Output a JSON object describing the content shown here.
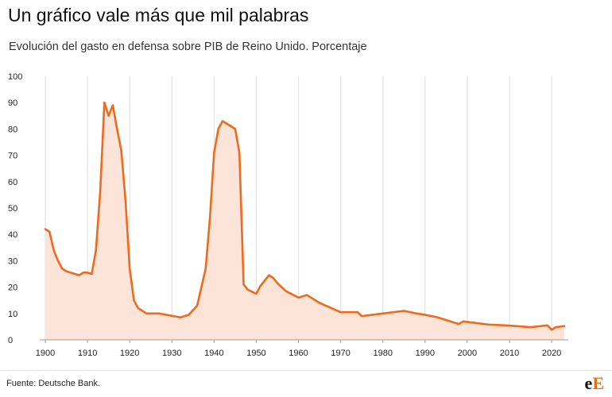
{
  "title": "Un gráfico vale más que mil palabras",
  "subtitle": "Evolución del gasto en defensa sobre PIB de Reino Unido. Porcentaje",
  "source": "Fuente: Deutsche Bank.",
  "logo": {
    "part1": "e",
    "part2": "E"
  },
  "colors": {
    "line": "#ee6b1d",
    "fill": "#fde4d9",
    "grid": "#e2e2e2",
    "axis": "#9a9a9a"
  },
  "chart_data": {
    "type": "area",
    "title": "",
    "xlabel": "",
    "ylabel": "",
    "xlim": [
      1900,
      2023
    ],
    "ylim": [
      0,
      100
    ],
    "x_ticks": [
      1900,
      1910,
      1920,
      1930,
      1940,
      1950,
      1960,
      1970,
      1980,
      1990,
      2000,
      2010,
      2020
    ],
    "y_ticks": [
      0,
      10,
      20,
      30,
      40,
      50,
      60,
      70,
      80,
      90,
      100
    ],
    "grid": "vertical",
    "legend": "none",
    "series": [
      {
        "x": [
          1900,
          1901,
          1902,
          1903,
          1904,
          1905,
          1908,
          1909,
          1910,
          1911,
          1912,
          1913,
          1914,
          1915,
          1916,
          1917,
          1918,
          1919,
          1920,
          1921,
          1922,
          1924,
          1927,
          1932,
          1934,
          1936,
          1937,
          1938,
          1939,
          1940,
          1941,
          1942,
          1943,
          1945,
          1946,
          1947,
          1948,
          1950,
          1951,
          1952,
          1953,
          1954,
          1955,
          1957,
          1960,
          1962,
          1965,
          1970,
          1974,
          1975,
          1980,
          1985,
          1988,
          1990,
          1993,
          1998,
          1999,
          2000,
          2005,
          2010,
          2015,
          2019,
          2020,
          2021,
          2023
        ],
        "y": [
          42,
          41,
          34,
          30,
          27,
          26,
          24.5,
          25.5,
          25.5,
          25,
          34,
          56,
          90,
          85,
          89,
          80,
          72,
          53,
          27,
          15,
          12,
          10,
          10,
          8.5,
          9.5,
          13,
          20,
          27,
          46,
          71,
          80,
          83,
          82,
          80,
          71,
          21,
          19,
          17.5,
          20.5,
          22.5,
          24.5,
          23.5,
          21.5,
          18.5,
          16,
          17,
          14,
          10.5,
          10.5,
          9,
          10,
          11,
          10,
          9.5,
          8.5,
          6,
          7,
          6.8,
          5.8,
          5.4,
          4.8,
          5.5,
          3.8,
          4.8,
          5.2
        ]
      }
    ]
  }
}
